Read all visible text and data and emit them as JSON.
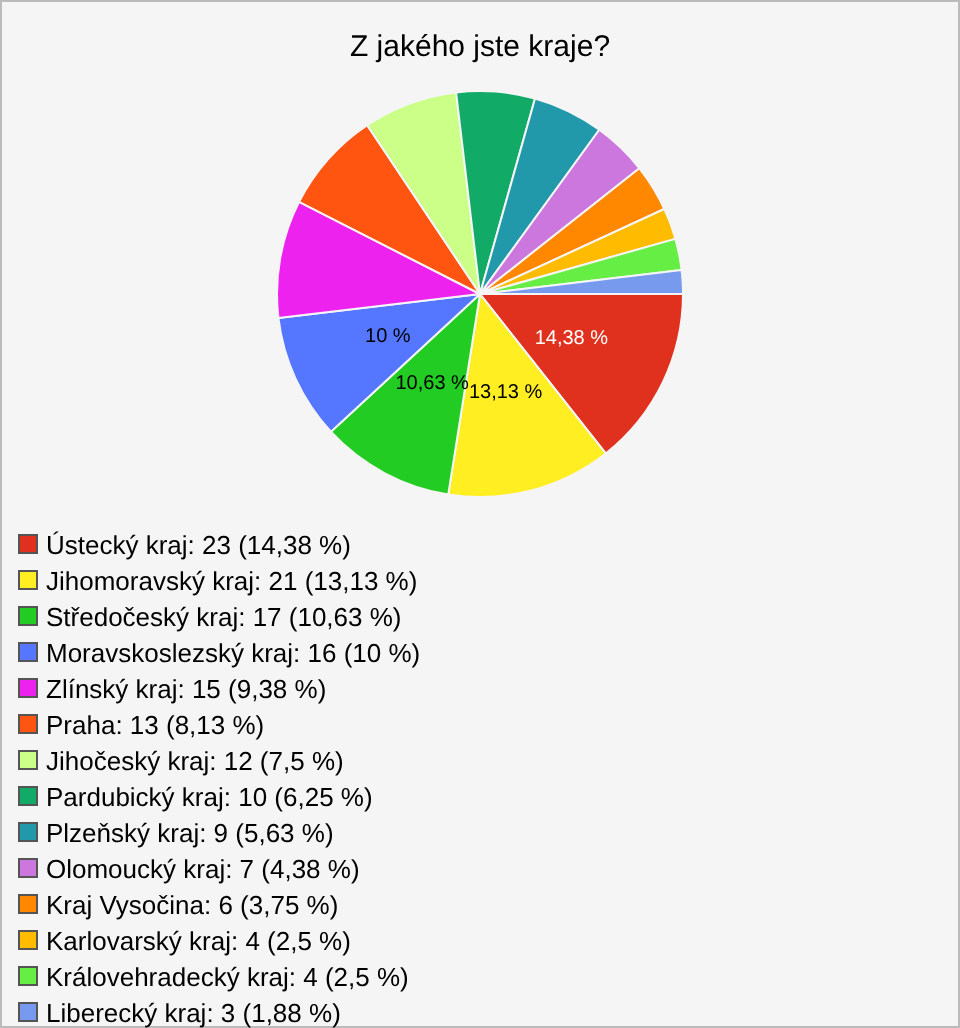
{
  "chart_data": {
    "type": "pie",
    "title": "Z jakého jste kraje?",
    "legend": "bottom",
    "categories": [
      "Ústecký kraj: 23 (14,38 %)",
      "Jihomoravský kraj: 21 (13,13 %)",
      "Středočeský kraj: 17 (10,63 %)",
      "Moravskoslezský kraj: 16 (10 %)",
      "Zlínský kraj: 15 (9,38 %)",
      "Praha: 13 (8,13 %)",
      "Jihočeský kraj: 12 (7,5 %)",
      "Pardubický kraj: 10 (6,25 %)",
      "Plzeňský kraj: 9 (5,63 %)",
      "Olomoucký kraj: 7 (4,38 %)",
      "Kraj Vysočina: 6 (3,75 %)",
      "Karlovarský kraj: 4 (2,5 %)",
      "Královehradecký kraj: 4 (2,5 %)",
      "Liberecký kraj: 3 (1,88 %)"
    ],
    "values": [
      14.38,
      13.13,
      10.63,
      10,
      9.38,
      8.13,
      7.5,
      6.25,
      5.63,
      4.38,
      3.75,
      2.5,
      2.5,
      1.88
    ],
    "value_labels": [
      "14,38 %",
      "13,13 %",
      "10,63 %",
      "10 %",
      null,
      null,
      null,
      null,
      null,
      null,
      null,
      null,
      null,
      null
    ],
    "colors": [
      "#e0301e",
      "#ffee22",
      "#22cc22",
      "#5577ff",
      "#ee22ee",
      "#ff5511",
      "#ccff88",
      "#11aa66",
      "#2299aa",
      "#cc77dd",
      "#ff8800",
      "#ffbb00",
      "#66ee44",
      "#7799ee"
    ]
  }
}
